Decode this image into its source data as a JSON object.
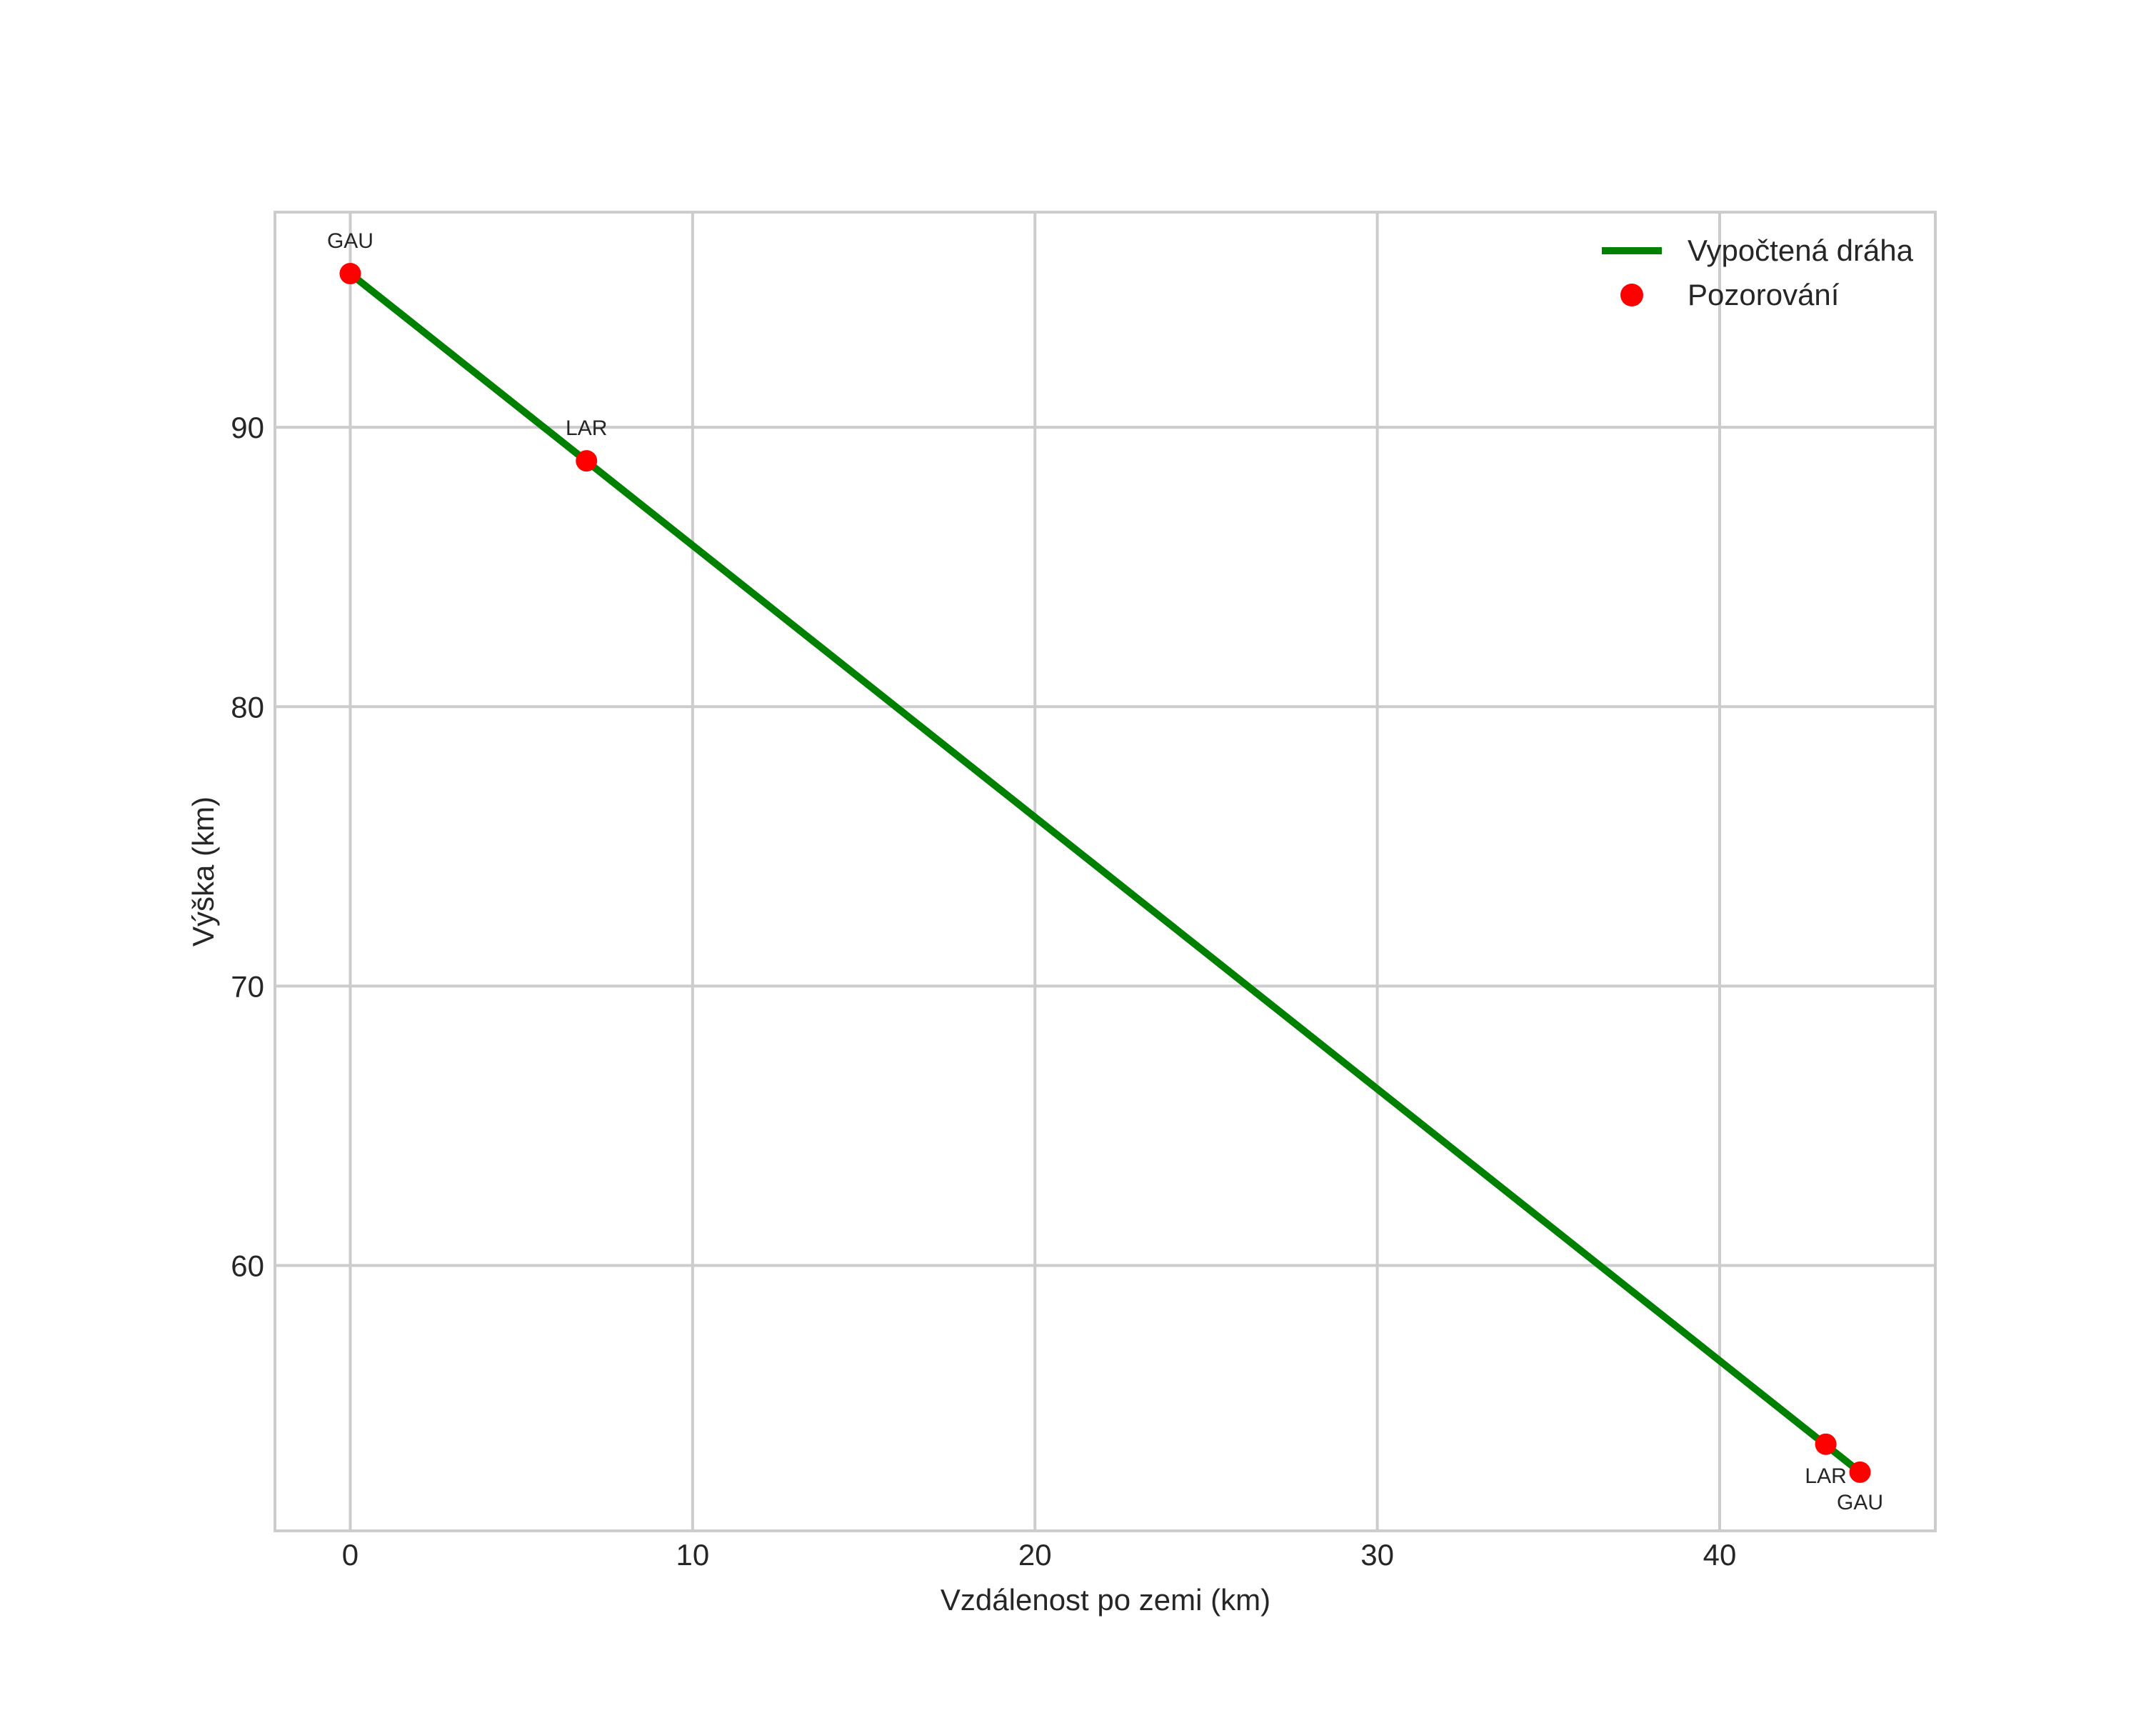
{
  "chart_data": {
    "type": "line",
    "title": "",
    "xlabel": "Vzdálenost po zemi (km)",
    "ylabel": "Výška (km)",
    "xlim": [
      -2.2,
      46.3
    ],
    "ylim": [
      50.5,
      97.7
    ],
    "x_ticks": [
      0,
      10,
      20,
      30,
      40
    ],
    "y_ticks": [
      60,
      70,
      80,
      90
    ],
    "grid": true,
    "legend_position": "upper right",
    "legend": [
      {
        "label": "Vypočtená dráha",
        "type": "line",
        "color": "#008000"
      },
      {
        "label": "Pozorování",
        "type": "marker",
        "color": "#ff0000"
      }
    ],
    "series": [
      {
        "name": "Vypočtená dráha",
        "type": "line",
        "color": "#008000",
        "points": [
          [
            0,
            95.5
          ],
          [
            44.1,
            52.6
          ]
        ]
      },
      {
        "name": "Pozorování",
        "type": "scatter",
        "color": "#ff0000",
        "points": [
          [
            0,
            95.5
          ],
          [
            6.9,
            88.8
          ],
          [
            43.1,
            53.6
          ],
          [
            44.1,
            52.6
          ]
        ]
      }
    ],
    "annotations": [
      {
        "text": "GAU",
        "x": 0.0,
        "y": 95.5,
        "dy": -47
      },
      {
        "text": "LAR",
        "x": 6.9,
        "y": 88.8,
        "dy": -47
      },
      {
        "text": "LAR",
        "x": 43.1,
        "y": 53.6,
        "dy": 43
      },
      {
        "text": "GAU",
        "x": 44.1,
        "y": 52.6,
        "dy": 41
      }
    ],
    "colors": {
      "grid": "#cccccc",
      "spine": "#cccccc",
      "text": "#262626",
      "background": "#ffffff"
    }
  }
}
